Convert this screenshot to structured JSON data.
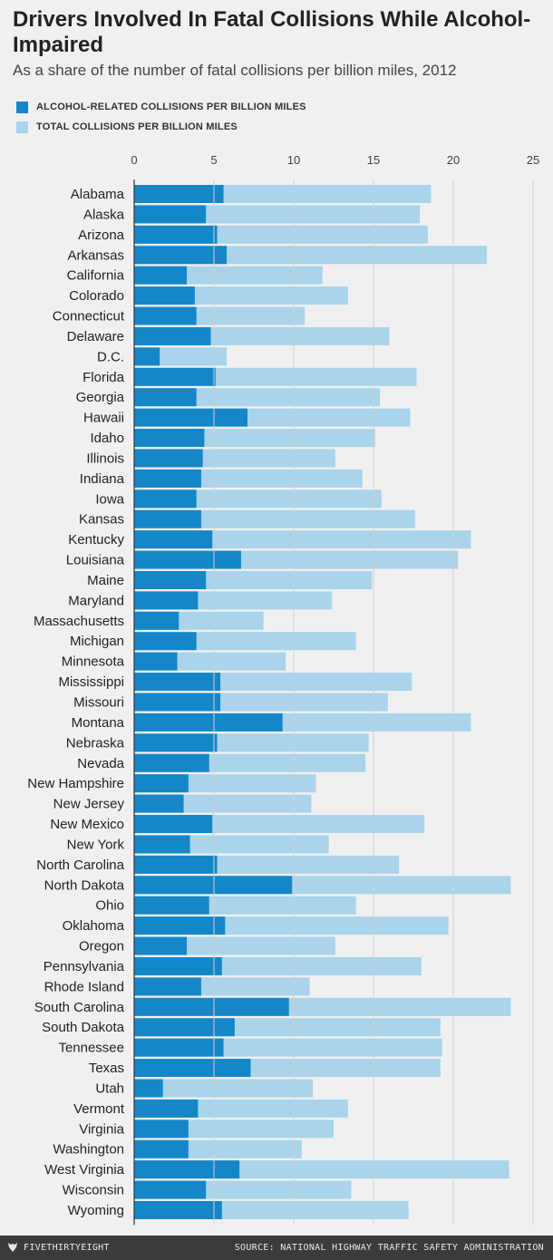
{
  "chart_data": {
    "type": "bar",
    "orientation": "horizontal",
    "title": "Drivers Involved In Fatal Collisions While Alcohol-Impaired",
    "subtitle": "As a share of the number of fatal collisions per billion miles, 2012",
    "xlim": [
      0,
      25
    ],
    "xticks": [
      0,
      5,
      10,
      15,
      20,
      25
    ],
    "grid": true,
    "legend_position": "top-left",
    "colors": {
      "alcohol": "#1587c8",
      "total": "#a9d4eb"
    },
    "series": [
      {
        "key": "alcohol",
        "name": "ALCOHOL-RELATED COLLISIONS PER BILLION MILES"
      },
      {
        "key": "total",
        "name": "TOTAL COLLISIONS PER BILLION MILES"
      }
    ],
    "rows": [
      {
        "state": "Alabama",
        "alcohol": 5.6,
        "total": 18.6
      },
      {
        "state": "Alaska",
        "alcohol": 4.5,
        "total": 17.9
      },
      {
        "state": "Arizona",
        "alcohol": 5.2,
        "total": 18.4
      },
      {
        "state": "Arkansas",
        "alcohol": 5.8,
        "total": 22.1
      },
      {
        "state": "California",
        "alcohol": 3.3,
        "total": 11.8
      },
      {
        "state": "Colorado",
        "alcohol": 3.8,
        "total": 13.4
      },
      {
        "state": "Connecticut",
        "alcohol": 3.9,
        "total": 10.7
      },
      {
        "state": "Delaware",
        "alcohol": 4.8,
        "total": 16.0
      },
      {
        "state": "D.C.",
        "alcohol": 1.6,
        "total": 5.8
      },
      {
        "state": "Florida",
        "alcohol": 5.1,
        "total": 17.7
      },
      {
        "state": "Georgia",
        "alcohol": 3.9,
        "total": 15.4
      },
      {
        "state": "Hawaii",
        "alcohol": 7.1,
        "total": 17.3
      },
      {
        "state": "Idaho",
        "alcohol": 4.4,
        "total": 15.1
      },
      {
        "state": "Illinois",
        "alcohol": 4.3,
        "total": 12.6
      },
      {
        "state": "Indiana",
        "alcohol": 4.2,
        "total": 14.3
      },
      {
        "state": "Iowa",
        "alcohol": 3.9,
        "total": 15.5
      },
      {
        "state": "Kansas",
        "alcohol": 4.2,
        "total": 17.6
      },
      {
        "state": "Kentucky",
        "alcohol": 4.9,
        "total": 21.1
      },
      {
        "state": "Louisiana",
        "alcohol": 6.7,
        "total": 20.3
      },
      {
        "state": "Maine",
        "alcohol": 4.5,
        "total": 14.9
      },
      {
        "state": "Maryland",
        "alcohol": 4.0,
        "total": 12.4
      },
      {
        "state": "Massachusetts",
        "alcohol": 2.8,
        "total": 8.1
      },
      {
        "state": "Michigan",
        "alcohol": 3.9,
        "total": 13.9
      },
      {
        "state": "Minnesota",
        "alcohol": 2.7,
        "total": 9.5
      },
      {
        "state": "Mississippi",
        "alcohol": 5.4,
        "total": 17.4
      },
      {
        "state": "Missouri",
        "alcohol": 5.4,
        "total": 15.9
      },
      {
        "state": "Montana",
        "alcohol": 9.3,
        "total": 21.1
      },
      {
        "state": "Nebraska",
        "alcohol": 5.2,
        "total": 14.7
      },
      {
        "state": "Nevada",
        "alcohol": 4.7,
        "total": 14.5
      },
      {
        "state": "New Hampshire",
        "alcohol": 3.4,
        "total": 11.4
      },
      {
        "state": "New Jersey",
        "alcohol": 3.1,
        "total": 11.1
      },
      {
        "state": "New Mexico",
        "alcohol": 4.9,
        "total": 18.2
      },
      {
        "state": "New York",
        "alcohol": 3.5,
        "total": 12.2
      },
      {
        "state": "North Carolina",
        "alcohol": 5.2,
        "total": 16.6
      },
      {
        "state": "North Dakota",
        "alcohol": 9.9,
        "total": 23.6
      },
      {
        "state": "Ohio",
        "alcohol": 4.7,
        "total": 13.9
      },
      {
        "state": "Oklahoma",
        "alcohol": 5.7,
        "total": 19.7
      },
      {
        "state": "Oregon",
        "alcohol": 3.3,
        "total": 12.6
      },
      {
        "state": "Pennsylvania",
        "alcohol": 5.5,
        "total": 18.0
      },
      {
        "state": "Rhode Island",
        "alcohol": 4.2,
        "total": 11.0
      },
      {
        "state": "South Carolina",
        "alcohol": 9.7,
        "total": 23.6
      },
      {
        "state": "South Dakota",
        "alcohol": 6.3,
        "total": 19.2
      },
      {
        "state": "Tennessee",
        "alcohol": 5.6,
        "total": 19.3
      },
      {
        "state": "Texas",
        "alcohol": 7.3,
        "total": 19.2
      },
      {
        "state": "Utah",
        "alcohol": 1.8,
        "total": 11.2
      },
      {
        "state": "Vermont",
        "alcohol": 4.0,
        "total": 13.4
      },
      {
        "state": "Virginia",
        "alcohol": 3.4,
        "total": 12.5
      },
      {
        "state": "Washington",
        "alcohol": 3.4,
        "total": 10.5
      },
      {
        "state": "West Virginia",
        "alcohol": 6.6,
        "total": 23.5
      },
      {
        "state": "Wisconsin",
        "alcohol": 4.5,
        "total": 13.6
      },
      {
        "state": "Wyoming",
        "alcohol": 5.5,
        "total": 17.2
      }
    ]
  },
  "footer": {
    "brand": "FIVETHIRTYEIGHT",
    "brand_icon": "fivethirtyeight-fox-icon",
    "source": "SOURCE: NATIONAL HIGHWAY TRAFFIC SAFETY ADMINISTRATION"
  }
}
